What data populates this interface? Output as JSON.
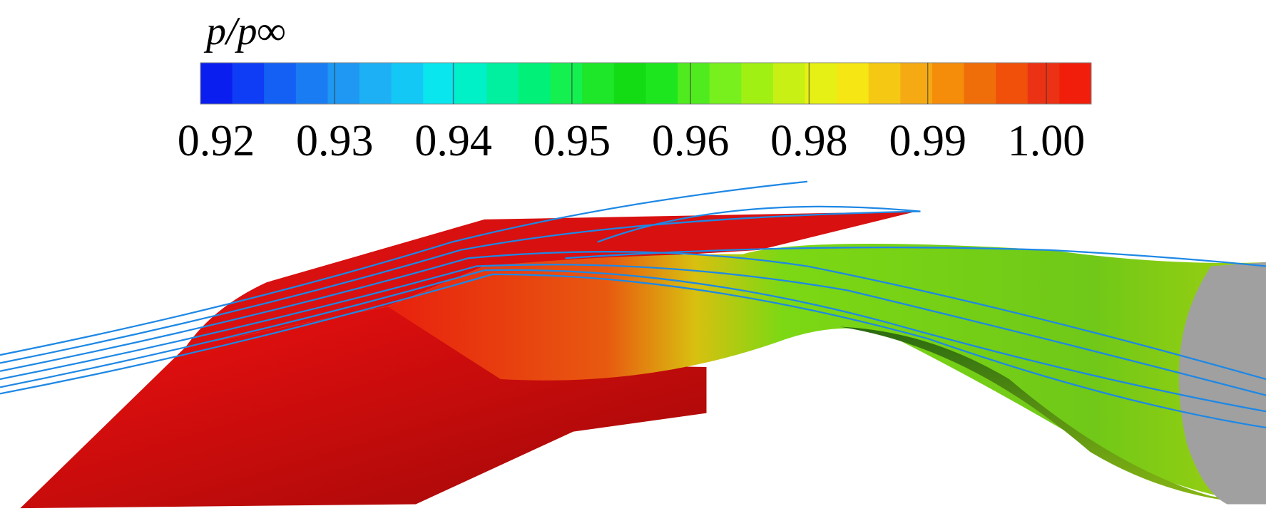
{
  "colorbar": {
    "title": "p/p∞",
    "ticks": [
      "0.92",
      "0.93",
      "0.94",
      "0.95",
      "0.96",
      "0.98",
      "0.99",
      "1.00"
    ],
    "colors": [
      "#0a1ef0",
      "#0f3cf5",
      "#1460f5",
      "#1a7cf2",
      "#1e98f2",
      "#1eb0f5",
      "#14c8f5",
      "#0ae6ee",
      "#00f0c8",
      "#00f0a0",
      "#00f078",
      "#14f050",
      "#1ee628",
      "#14dc14",
      "#1ee61e",
      "#50eb1e",
      "#78f01e",
      "#a0f014",
      "#c8f014",
      "#e6f014",
      "#f5e614",
      "#f5c814",
      "#f5aa14",
      "#f58c0a",
      "#f06e0a",
      "#f0500a",
      "#eb3214",
      "#f01e0a"
    ]
  }
}
